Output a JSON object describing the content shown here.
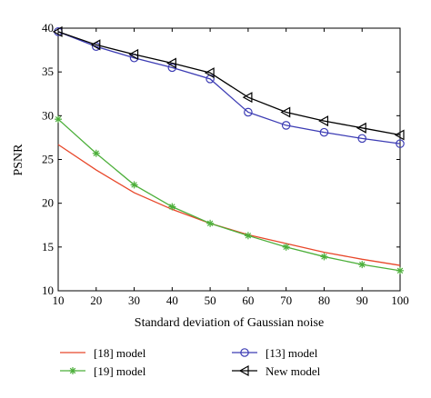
{
  "chart_data": {
    "type": "line",
    "title": "",
    "xlabel": "Standard deviation of Gaussian noise",
    "ylabel": "PSNR",
    "xlim": [
      10,
      100
    ],
    "ylim": [
      10,
      40
    ],
    "xticks": [
      10,
      20,
      30,
      40,
      50,
      60,
      70,
      80,
      90,
      100
    ],
    "yticks": [
      10,
      15,
      20,
      25,
      30,
      35,
      40
    ],
    "grid": false,
    "legend_position": "bottom",
    "x": [
      10,
      20,
      30,
      40,
      50,
      60,
      70,
      80,
      90,
      100
    ],
    "series": [
      {
        "name": "[18] model",
        "color": "#e8472a",
        "marker": "none",
        "values": [
          26.7,
          23.8,
          21.2,
          19.3,
          17.7,
          16.4,
          15.4,
          14.4,
          13.6,
          12.9
        ]
      },
      {
        "name": "[19] model",
        "color": "#4caf3a",
        "marker": "asterisk",
        "values": [
          29.6,
          25.7,
          22.1,
          19.6,
          17.7,
          16.3,
          15.0,
          13.9,
          13.0,
          12.3
        ]
      },
      {
        "name": "[13] model",
        "color": "#3c3cb4",
        "marker": "circle",
        "values": [
          39.6,
          37.9,
          36.6,
          35.5,
          34.2,
          30.4,
          28.9,
          28.1,
          27.4,
          26.8
        ]
      },
      {
        "name": "New model",
        "color": "#000000",
        "marker": "triangle-left",
        "values": [
          39.6,
          38.1,
          37.0,
          36.0,
          34.9,
          32.1,
          30.4,
          29.4,
          28.6,
          27.8
        ]
      }
    ]
  }
}
